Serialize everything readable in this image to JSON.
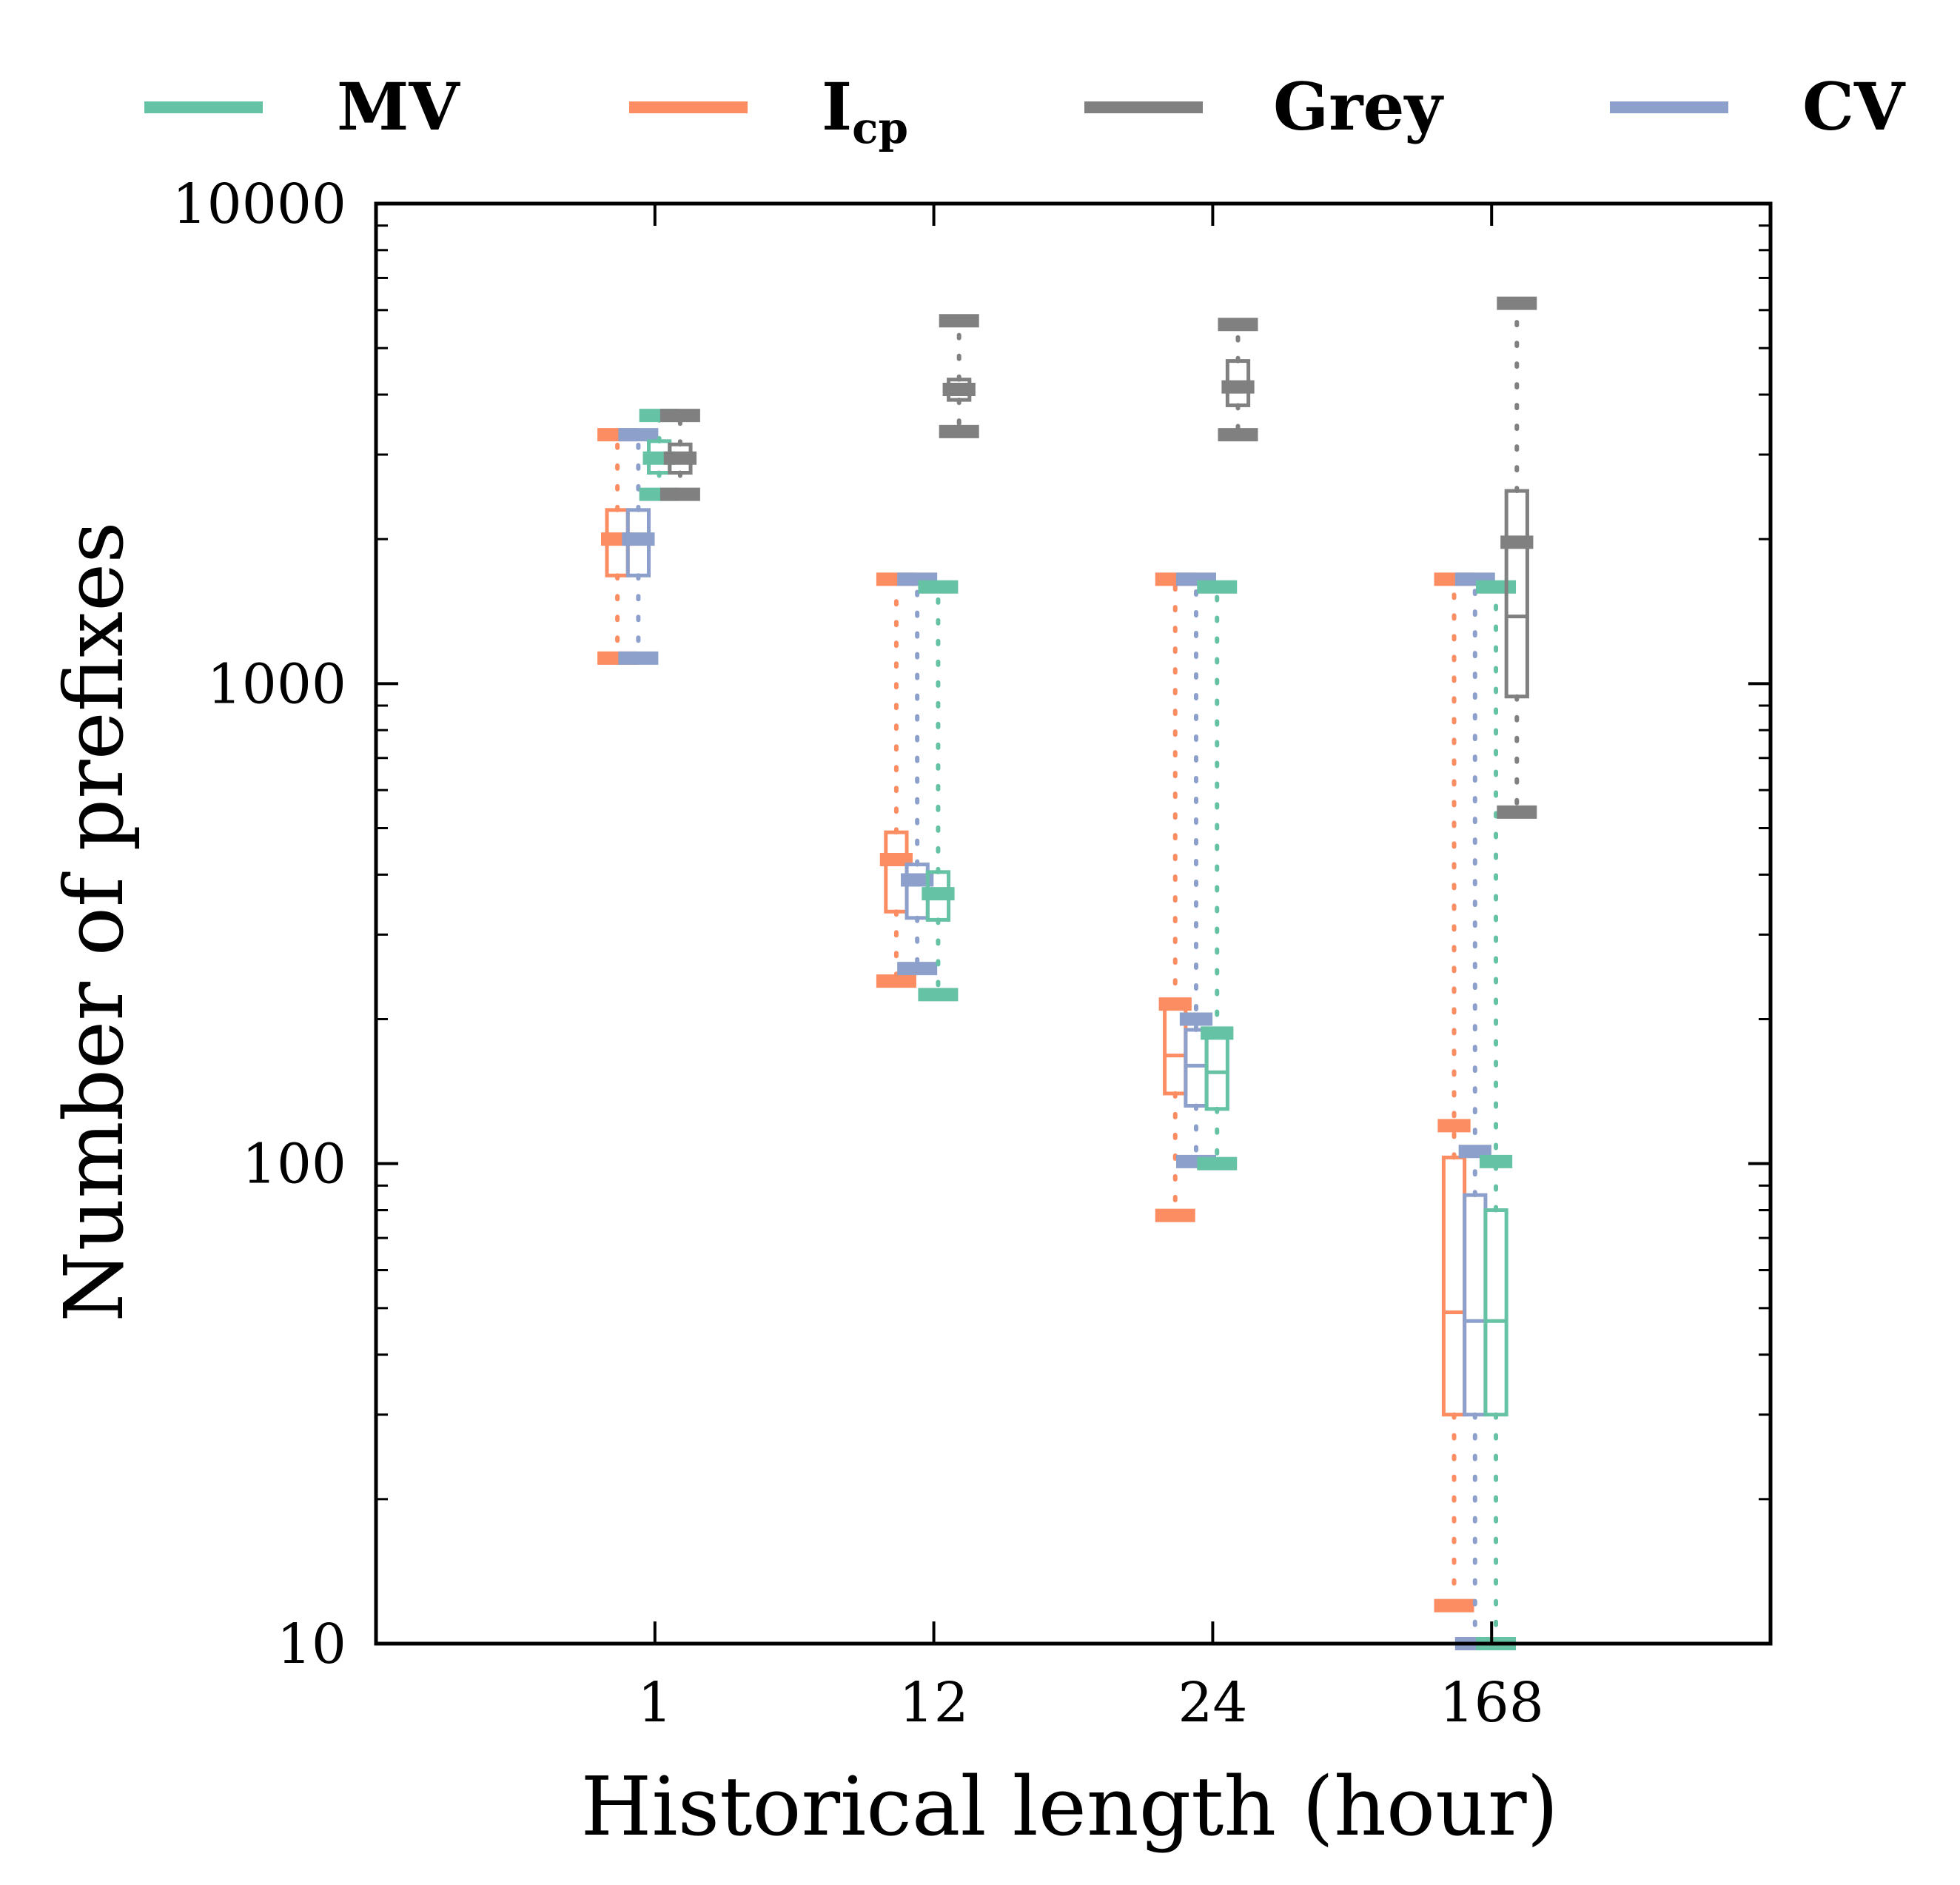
{
  "chart_data": {
    "type": "box",
    "xlabel": "Historical length (hour)",
    "ylabel": "Number of prefixes",
    "categories": [
      "1",
      "12",
      "24",
      "168"
    ],
    "y_scale": "log",
    "ylim": [
      10,
      10000
    ],
    "y_ticks": [
      "10",
      "100",
      "1000",
      "10000"
    ],
    "legend": {
      "placement": "top",
      "entries": [
        {
          "label": "MV",
          "sub": "",
          "color": "#66c2a5"
        },
        {
          "label": "I",
          "sub": "cp",
          "color": "#fc8d62"
        },
        {
          "label": "Grey",
          "sub": "",
          "color": "#808080"
        },
        {
          "label": "CV",
          "sub": "",
          "color": "#8da0cb"
        }
      ]
    },
    "series": [
      {
        "name": "I_cp",
        "color": "#fc8d62",
        "boxes": [
          {
            "category": "1",
            "whisker_low": 1130,
            "q1": 1680,
            "median": 2000,
            "mean": 2000,
            "q3": 2300,
            "whisker_high": 3300
          },
          {
            "category": "12",
            "whisker_low": 240,
            "q1": 335,
            "median": 430,
            "mean": 430,
            "q3": 490,
            "whisker_high": 1650
          },
          {
            "category": "24",
            "whisker_low": 78,
            "q1": 140,
            "median": 168,
            "mean": 215,
            "q3": 215,
            "whisker_high": 1650
          },
          {
            "category": "168",
            "whisker_low": 12,
            "q1": 30,
            "median": 49,
            "mean": 120,
            "q3": 103,
            "whisker_high": 1650
          }
        ]
      },
      {
        "name": "CV",
        "color": "#8da0cb",
        "boxes": [
          {
            "category": "1",
            "whisker_low": 1130,
            "q1": 1680,
            "median": 2000,
            "mean": 2000,
            "q3": 2300,
            "whisker_high": 3300
          },
          {
            "category": "12",
            "whisker_low": 255,
            "q1": 325,
            "median": 390,
            "mean": 390,
            "q3": 420,
            "whisker_high": 1650
          },
          {
            "category": "24",
            "whisker_low": 101,
            "q1": 132,
            "median": 160,
            "mean": 200,
            "q3": 190,
            "whisker_high": 1650
          },
          {
            "category": "168",
            "whisker_low": 10,
            "q1": 30,
            "median": 47,
            "mean": 106,
            "q3": 86,
            "whisker_high": 1650
          }
        ]
      },
      {
        "name": "MV",
        "color": "#66c2a5",
        "boxes": [
          {
            "category": "1",
            "whisker_low": 2480,
            "q1": 2750,
            "median": 3000,
            "mean": 2950,
            "q3": 3200,
            "whisker_high": 3620
          },
          {
            "category": "12",
            "whisker_low": 225,
            "q1": 322,
            "median": 365,
            "mean": 365,
            "q3": 405,
            "whisker_high": 1590
          },
          {
            "category": "24",
            "whisker_low": 100,
            "q1": 130,
            "median": 155,
            "mean": 187,
            "q3": 185,
            "whisker_high": 1590
          },
          {
            "category": "168",
            "whisker_low": 10,
            "q1": 30,
            "median": 47,
            "mean": 101,
            "q3": 80,
            "whisker_high": 1590
          }
        ]
      },
      {
        "name": "Grey",
        "color": "#808080",
        "boxes": [
          {
            "category": "1",
            "whisker_low": 2480,
            "q1": 2750,
            "median": 2950,
            "mean": 2950,
            "q3": 3150,
            "whisker_high": 3620
          },
          {
            "category": "12",
            "whisker_low": 3350,
            "q1": 3900,
            "median": 4100,
            "mean": 4100,
            "q3": 4300,
            "whisker_high": 5700
          },
          {
            "category": "24",
            "whisker_low": 3300,
            "q1": 3800,
            "median": 4150,
            "mean": 4150,
            "q3": 4700,
            "whisker_high": 5600
          },
          {
            "category": "168",
            "whisker_low": 540,
            "q1": 940,
            "median": 1380,
            "mean": 1970,
            "q3": 2520,
            "whisker_high": 6200
          }
        ]
      }
    ]
  }
}
